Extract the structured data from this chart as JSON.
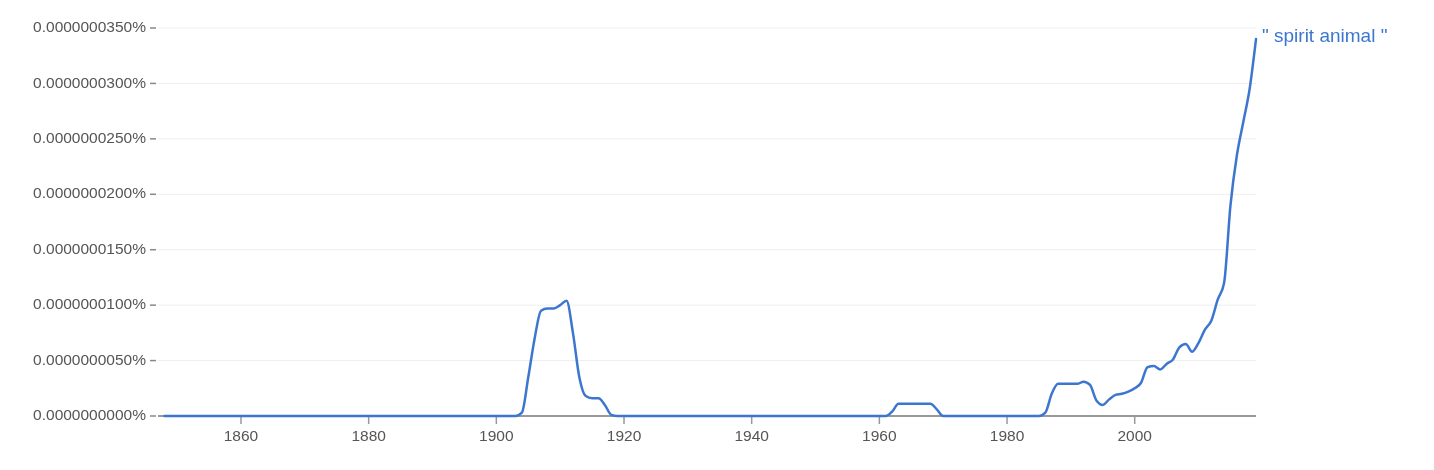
{
  "chart_data": {
    "type": "line",
    "xlim": [
      1847,
      2019
    ],
    "xticks": [
      1860,
      1880,
      1900,
      1920,
      1940,
      1960,
      1980,
      2000
    ],
    "ylim": [
      0,
      3.5e-08
    ],
    "yticks": [
      {
        "value": 0,
        "label": "0.0000000000%"
      },
      {
        "value": 5e-09,
        "label": "0.0000000050%"
      },
      {
        "value": 1e-08,
        "label": "0.0000000100%"
      },
      {
        "value": 1.5e-08,
        "label": "0.0000000150%"
      },
      {
        "value": 2e-08,
        "label": "0.0000000200%"
      },
      {
        "value": 2.5e-08,
        "label": "0.0000000250%"
      },
      {
        "value": 3e-08,
        "label": "0.0000000300%"
      },
      {
        "value": 3.5e-08,
        "label": "0.0000000350%"
      }
    ],
    "grid": "y",
    "series": [
      {
        "name": "\" spirit animal \"",
        "color": "#3d76cf",
        "x": [
          1848,
          1903,
          1904,
          1905,
          1906,
          1907,
          1908,
          1909,
          1910,
          1911,
          1912,
          1913,
          1914,
          1915,
          1916,
          1917,
          1918,
          1919,
          1960,
          1961,
          1962,
          1963,
          1968,
          1969,
          1970,
          1985,
          1986,
          1987,
          1988,
          1989,
          1990,
          1991,
          1992,
          1993,
          1994,
          1995,
          1996,
          1997,
          1998,
          1999,
          2000,
          2001,
          2002,
          2003,
          2004,
          2005,
          2006,
          2007,
          2008,
          2009,
          2010,
          2011,
          2012,
          2013,
          2014,
          2015,
          2016,
          2017,
          2018,
          2019
        ],
        "values": [
          0,
          0,
          3e-10,
          3.5e-09,
          7e-09,
          9.5e-09,
          9.7e-09,
          9.7e-09,
          1e-08,
          1.04e-08,
          7.5e-09,
          3.5e-09,
          1.8e-09,
          1.6e-09,
          1.6e-09,
          1e-09,
          1e-10,
          0,
          0,
          0,
          4e-10,
          1.1e-09,
          1.1e-09,
          6e-10,
          0,
          0,
          3e-10,
          2e-09,
          2.9e-09,
          2.9e-09,
          2.9e-09,
          2.9e-09,
          3.1e-09,
          2.8e-09,
          1.4e-09,
          1e-09,
          1.5e-09,
          1.9e-09,
          2e-09,
          2.2e-09,
          2.5e-09,
          3e-09,
          4.4e-09,
          4.5e-09,
          4.2e-09,
          4.7e-09,
          5.1e-09,
          6.2e-09,
          6.5e-09,
          5.8e-09,
          6.6e-09,
          7.8e-09,
          8.6e-09,
          1.05e-08,
          1.2e-08,
          1.9e-08,
          2.35e-08,
          2.65e-08,
          2.95e-08,
          3.4e-08
        ]
      }
    ]
  }
}
